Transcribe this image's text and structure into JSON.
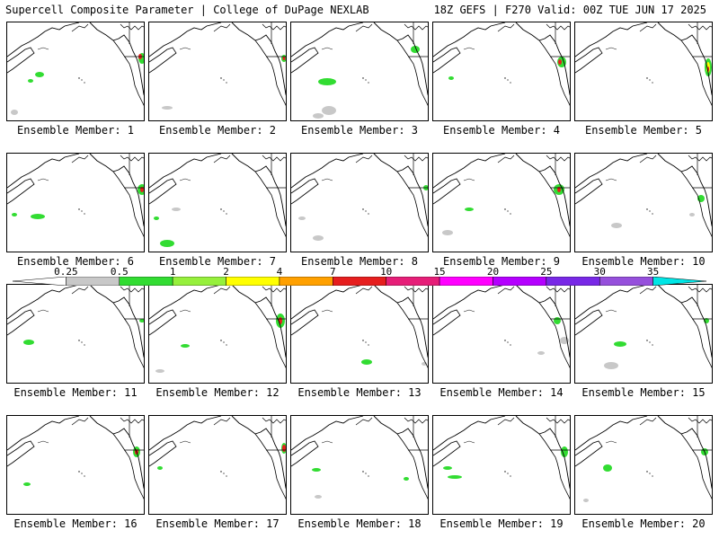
{
  "header": {
    "title": "Supercell Composite Parameter | College of DuPage NEXLAB",
    "run_info": "18Z GEFS | F270 Valid: 00Z TUE JUN 17 2025"
  },
  "members": [
    {
      "label": "Ensemble Member: 1"
    },
    {
      "label": "Ensemble Member: 2"
    },
    {
      "label": "Ensemble Member: 3"
    },
    {
      "label": "Ensemble Member: 4"
    },
    {
      "label": "Ensemble Member: 5"
    },
    {
      "label": "Ensemble Member: 6"
    },
    {
      "label": "Ensemble Member: 7"
    },
    {
      "label": "Ensemble Member: 8"
    },
    {
      "label": "Ensemble Member: 9"
    },
    {
      "label": "Ensemble Member: 10"
    },
    {
      "label": "Ensemble Member: 11"
    },
    {
      "label": "Ensemble Member: 12"
    },
    {
      "label": "Ensemble Member: 13"
    },
    {
      "label": "Ensemble Member: 14"
    },
    {
      "label": "Ensemble Member: 15"
    },
    {
      "label": "Ensemble Member: 16"
    },
    {
      "label": "Ensemble Member: 17"
    },
    {
      "label": "Ensemble Member: 18"
    },
    {
      "label": "Ensemble Member: 19"
    },
    {
      "label": "Ensemble Member: 20"
    }
  ],
  "colorbar": {
    "levels": [
      "0.25",
      "0.5",
      "1",
      "2",
      "4",
      "7",
      "10",
      "15",
      "20",
      "25",
      "30",
      "35"
    ],
    "colors": [
      "#ffffff",
      "#c8c8c8",
      "#32dc32",
      "#96f03c",
      "#ffff00",
      "#ffa000",
      "#e61e1e",
      "#e61e78",
      "#ff00ff",
      "#b400ff",
      "#7828e6",
      "#9650dc",
      "#00e6e6"
    ]
  }
}
